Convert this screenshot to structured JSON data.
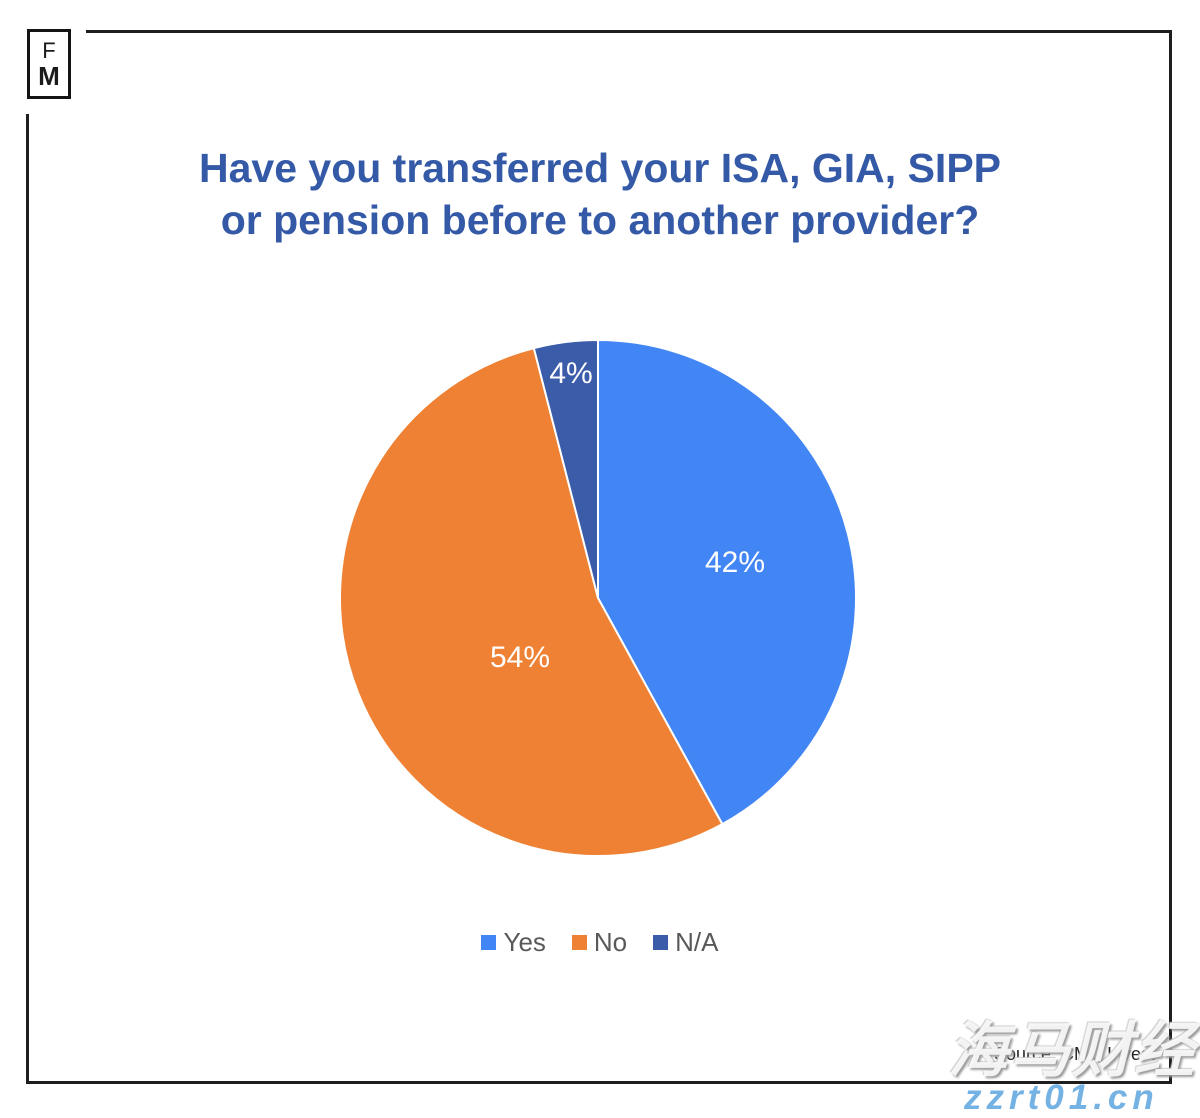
{
  "logo": {
    "letter1": "F",
    "letter2": "M"
  },
  "title": "Have you transferred your ISA, GIA, SIPP\nor pension before to another provider?",
  "title_color": "#3459A6",
  "chart_data": {
    "type": "pie",
    "title": "Have you transferred your ISA, GIA, SIPP or pension before to another provider?",
    "categories": [
      "Yes",
      "No",
      "N/A"
    ],
    "values": [
      42,
      54,
      4
    ],
    "unit": "percent",
    "colors": [
      "#4285F4",
      "#EE8133",
      "#3A5CA9"
    ],
    "slice_labels": [
      "42%",
      "54%",
      "4%"
    ],
    "slice_label_color": "#FFFFFF",
    "start_angle_deg": 0,
    "direction": "clockwise",
    "legend_position": "bottom",
    "legend": [
      "Yes",
      "No",
      "N/A"
    ]
  },
  "legend": {
    "items": [
      {
        "label": "Yes",
        "color": "#4285F4"
      },
      {
        "label": "No",
        "color": "#EE8133"
      },
      {
        "label": "N/A",
        "color": "#3A5CA9"
      }
    ]
  },
  "source": {
    "text": "Source: CMC Invest"
  },
  "watermark": {
    "line1": "海马财经",
    "line2": "zzrt01.cn",
    "url_color": "#74B2E4"
  }
}
